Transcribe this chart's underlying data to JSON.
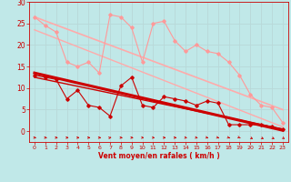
{
  "bg_color": "#c0e8e8",
  "grid_color": "#aadddd",
  "xlabel": "Vent moyen/en rafales ( km/h )",
  "xlabel_color": "#cc0000",
  "tick_color": "#cc0000",
  "xlim": [
    -0.5,
    23.5
  ],
  "ylim": [
    0,
    30
  ],
  "yticks": [
    0,
    5,
    10,
    15,
    20,
    25,
    30
  ],
  "xticks": [
    0,
    1,
    2,
    3,
    4,
    5,
    6,
    7,
    8,
    9,
    10,
    11,
    12,
    13,
    14,
    15,
    16,
    17,
    18,
    19,
    20,
    21,
    22,
    23
  ],
  "line1_x": [
    0,
    1,
    2,
    3,
    4,
    5,
    6,
    7,
    8,
    9,
    10,
    11,
    12,
    13,
    14,
    15,
    16,
    17,
    18,
    19,
    20,
    21,
    22,
    23
  ],
  "line1_y": [
    26.5,
    24.5,
    23,
    16,
    15,
    16,
    13.5,
    27,
    26.5,
    24,
    16,
    25,
    25.5,
    21,
    18.5,
    20,
    18.5,
    18,
    16,
    13,
    8.5,
    6,
    5.5,
    2
  ],
  "line1_color": "#ff9999",
  "line1_marker": "D",
  "line1_ms": 1.8,
  "line1_lw": 0.8,
  "line2_x": [
    0,
    1,
    2,
    3,
    4,
    5,
    6,
    7,
    8,
    9,
    10,
    11,
    12,
    13,
    14,
    15,
    16,
    17,
    18,
    19,
    20,
    21,
    22,
    23
  ],
  "line2_y": [
    13,
    12.5,
    12,
    7.5,
    9.5,
    6,
    5.5,
    3.5,
    10.5,
    12.5,
    6,
    5.5,
    8,
    7.5,
    7,
    6,
    7,
    6.5,
    1.5,
    1.5,
    1.5,
    1.5,
    1,
    0.5
  ],
  "line2_color": "#cc0000",
  "line2_marker": "D",
  "line2_ms": 1.8,
  "line2_lw": 0.8,
  "regline1_x": [
    0,
    23
  ],
  "regline1_y": [
    26.5,
    5.0
  ],
  "regline1_color": "#ffaaaa",
  "regline1_lw": 1.2,
  "regline2_x": [
    0,
    23
  ],
  "regline2_y": [
    23.5,
    1.0
  ],
  "regline2_color": "#ffaaaa",
  "regline2_lw": 1.0,
  "regline3_x": [
    0,
    23
  ],
  "regline3_y": [
    13.5,
    0.2
  ],
  "regline3_color": "#cc0000",
  "regline3_lw": 2.2,
  "regline4_x": [
    0,
    23
  ],
  "regline4_y": [
    12.5,
    0.5
  ],
  "regline4_color": "#cc0000",
  "regline4_lw": 1.0,
  "arrow_color": "#cc0000",
  "arrow_angles": [
    0,
    0,
    0,
    0,
    0,
    0,
    0,
    30,
    0,
    0,
    -10,
    -10,
    0,
    0,
    -10,
    -20,
    -30,
    -30,
    -30,
    -40,
    -50,
    -50,
    -50,
    -60
  ]
}
